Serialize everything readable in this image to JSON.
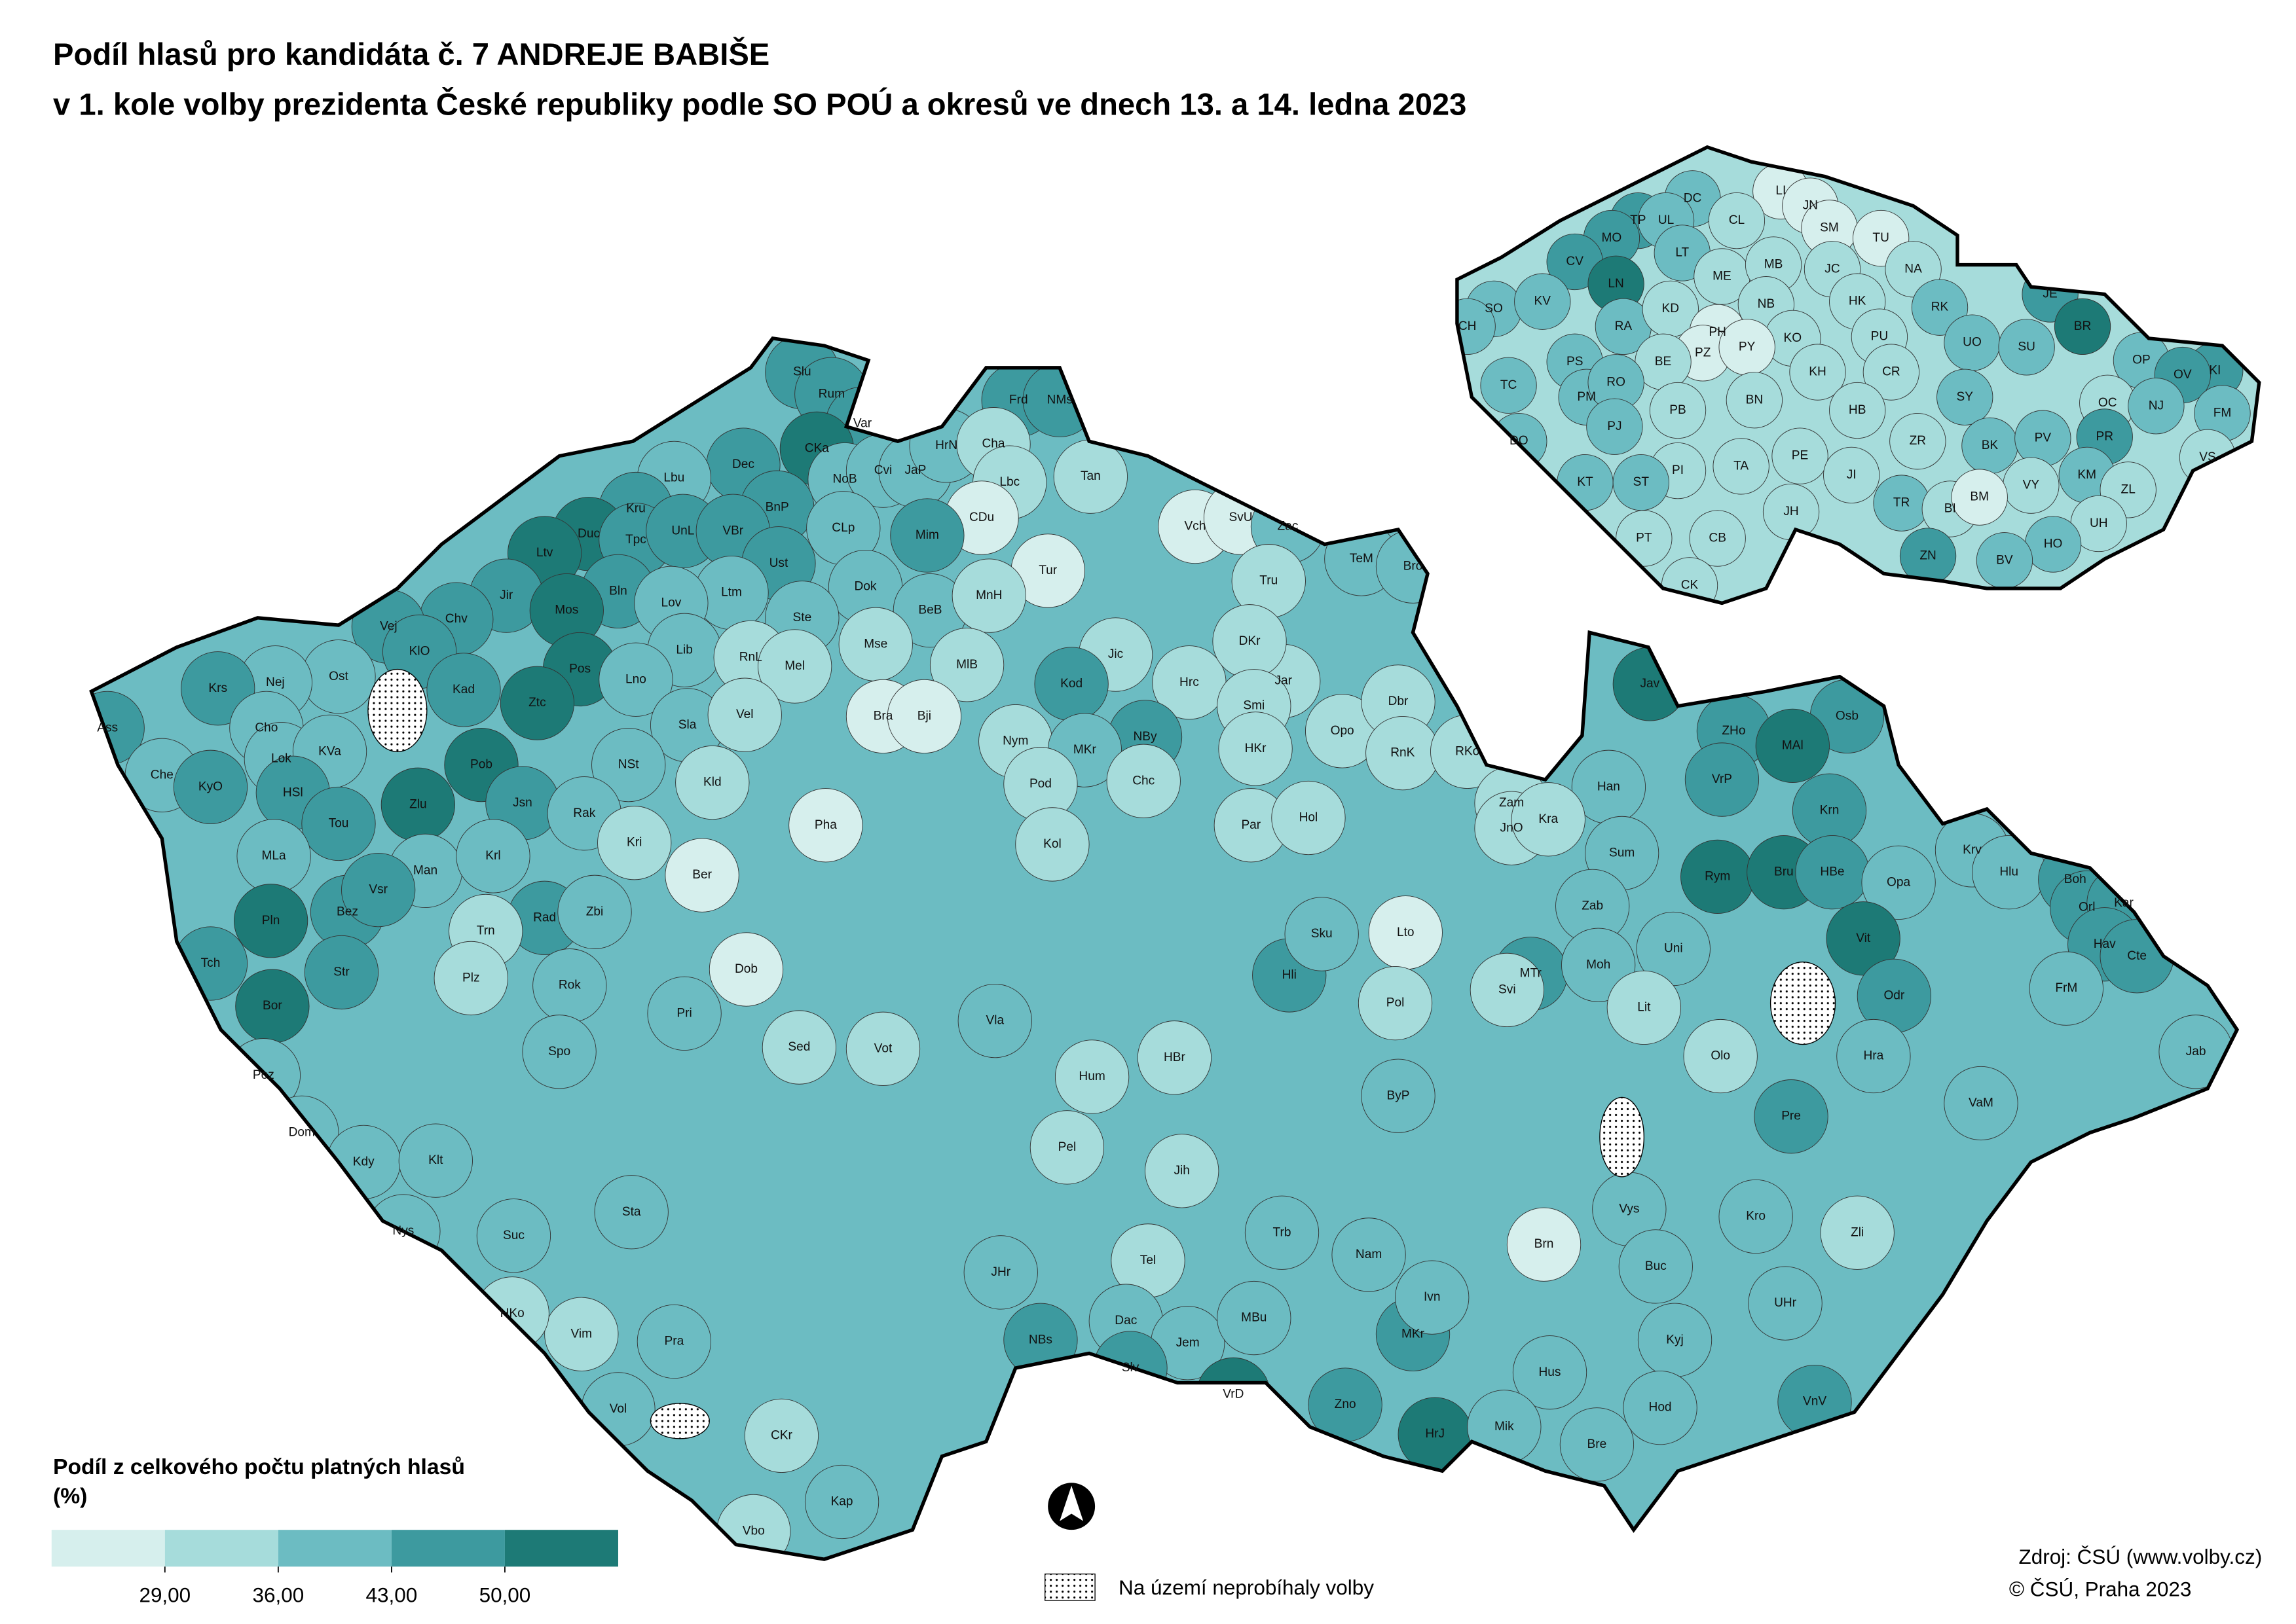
{
  "header": {
    "title_lines": [
      "Podíl hlasů pro kandidáta č. 7 ANDREJE BABIŠE",
      "v 1. kole volby prezidenta České republiky podle SO POÚ a okresů ve dnech 13. a 14. ledna 2023"
    ]
  },
  "legend": {
    "title_lines": [
      "Podíl z celkového počtu platných hlasů",
      "(%)"
    ],
    "colors": [
      "#d6efed",
      "#a6dcdb",
      "#6cbcc2",
      "#3d9a9f",
      "#1d7a76"
    ],
    "breaks": [
      {
        "value": 29,
        "label": "29,00"
      },
      {
        "value": 36,
        "label": "36,00"
      },
      {
        "value": 43,
        "label": "43,00"
      },
      {
        "value": 50,
        "label": "50,00"
      }
    ],
    "no_election": "Na území neprobíhaly volby"
  },
  "source_lines": [
    "Zdroj: ČSÚ (www.volby.cz)",
    "© ČSÚ, Praha 2023"
  ],
  "inset_regions": [
    {
      "label": "DC",
      "color": "#6cbcc2"
    },
    {
      "label": "LI",
      "color": "#d6efed"
    },
    {
      "label": "JN",
      "color": "#d6efed"
    },
    {
      "label": "TP",
      "color": "#3d9a9f"
    },
    {
      "label": "UL",
      "color": "#6cbcc2"
    },
    {
      "label": "CL",
      "color": "#a6dcdb"
    },
    {
      "label": "SM",
      "color": "#d6efed"
    },
    {
      "label": "MO",
      "color": "#3d9a9f"
    },
    {
      "label": "TU",
      "color": "#d6efed"
    },
    {
      "label": "CV",
      "color": "#3d9a9f"
    },
    {
      "label": "LT",
      "color": "#6cbcc2"
    },
    {
      "label": "LN",
      "color": "#1d7a76"
    },
    {
      "label": "ME",
      "color": "#a6dcdb"
    },
    {
      "label": "MB",
      "color": "#a6dcdb"
    },
    {
      "label": "JC",
      "color": "#a6dcdb"
    },
    {
      "label": "NA",
      "color": "#a6dcdb"
    },
    {
      "label": "SO",
      "color": "#6cbcc2"
    },
    {
      "label": "KV",
      "color": "#6cbcc2"
    },
    {
      "label": "RA",
      "color": "#6cbcc2"
    },
    {
      "label": "KD",
      "color": "#a6dcdb"
    },
    {
      "label": "NB",
      "color": "#a6dcdb"
    },
    {
      "label": "HK",
      "color": "#a6dcdb"
    },
    {
      "label": "RK",
      "color": "#6cbcc2"
    },
    {
      "label": "JE",
      "color": "#3d9a9f"
    },
    {
      "label": "CH",
      "color": "#6cbcc2"
    },
    {
      "label": "PH",
      "color": "#d6efed"
    },
    {
      "label": "BR",
      "color": "#1d7a76"
    },
    {
      "label": "KO",
      "color": "#a6dcdb"
    },
    {
      "label": "PZ",
      "color": "#d6efed"
    },
    {
      "label": "PY",
      "color": "#d6efed"
    },
    {
      "label": "UO",
      "color": "#6cbcc2"
    },
    {
      "label": "SU",
      "color": "#6cbcc2"
    },
    {
      "label": "OP",
      "color": "#6cbcc2"
    },
    {
      "label": "KI",
      "color": "#3d9a9f"
    },
    {
      "label": "TC",
      "color": "#6cbcc2"
    },
    {
      "label": "PS",
      "color": "#6cbcc2"
    },
    {
      "label": "BE",
      "color": "#a6dcdb"
    },
    {
      "label": "KH",
      "color": "#a6dcdb"
    },
    {
      "label": "PU",
      "color": "#a6dcdb"
    },
    {
      "label": "CR",
      "color": "#a6dcdb"
    },
    {
      "label": "OV",
      "color": "#3d9a9f"
    },
    {
      "label": "PM",
      "color": "#6cbcc2"
    },
    {
      "label": "RO",
      "color": "#6cbcc2"
    },
    {
      "label": "BN",
      "color": "#a6dcdb"
    },
    {
      "label": "SY",
      "color": "#6cbcc2"
    },
    {
      "label": "OC",
      "color": "#a6dcdb"
    },
    {
      "label": "NJ",
      "color": "#6cbcc2"
    },
    {
      "label": "FM",
      "color": "#6cbcc2"
    },
    {
      "label": "PJ",
      "color": "#6cbcc2"
    },
    {
      "label": "PB",
      "color": "#a6dcdb"
    },
    {
      "label": "HB",
      "color": "#a6dcdb"
    },
    {
      "label": "PR",
      "color": "#3d9a9f"
    },
    {
      "label": "DO",
      "color": "#6cbcc2"
    },
    {
      "label": "ZR",
      "color": "#a6dcdb"
    },
    {
      "label": "BK",
      "color": "#6cbcc2"
    },
    {
      "label": "PV",
      "color": "#6cbcc2"
    },
    {
      "label": "PE",
      "color": "#a6dcdb"
    },
    {
      "label": "TA",
      "color": "#a6dcdb"
    },
    {
      "label": "PI",
      "color": "#a6dcdb"
    },
    {
      "label": "KM",
      "color": "#6cbcc2"
    },
    {
      "label": "ZL",
      "color": "#a6dcdb"
    },
    {
      "label": "VS",
      "color": "#a6dcdb"
    },
    {
      "label": "KT",
      "color": "#6cbcc2"
    },
    {
      "label": "ST",
      "color": "#6cbcc2"
    },
    {
      "label": "JI",
      "color": "#a6dcdb"
    },
    {
      "label": "VY",
      "color": "#a6dcdb"
    },
    {
      "label": "TR",
      "color": "#6cbcc2"
    },
    {
      "label": "BI",
      "color": "#a6dcdb"
    },
    {
      "label": "BM",
      "color": "#d6efed"
    },
    {
      "label": "JH",
      "color": "#a6dcdb"
    },
    {
      "label": "UH",
      "color": "#a6dcdb"
    },
    {
      "label": "PT",
      "color": "#a6dcdb"
    },
    {
      "label": "CB",
      "color": "#a6dcdb"
    },
    {
      "label": "HO",
      "color": "#6cbcc2"
    },
    {
      "label": "ZN",
      "color": "#3d9a9f"
    },
    {
      "label": "BV",
      "color": "#6cbcc2"
    },
    {
      "label": "CK",
      "color": "#a6dcdb"
    }
  ],
  "main_regions": [
    {
      "label": "Slu",
      "color": "#3d9a9f"
    },
    {
      "label": "Rum",
      "color": "#3d9a9f"
    },
    {
      "label": "Var",
      "color": "#3d9a9f"
    },
    {
      "label": "Frd",
      "color": "#3d9a9f"
    },
    {
      "label": "NMs",
      "color": "#3d9a9f"
    },
    {
      "label": "CKa",
      "color": "#1d7a76"
    },
    {
      "label": "Dec",
      "color": "#3d9a9f"
    },
    {
      "label": "Lbu",
      "color": "#6cbcc2"
    },
    {
      "label": "NoB",
      "color": "#6cbcc2"
    },
    {
      "label": "Cvi",
      "color": "#6cbcc2"
    },
    {
      "label": "JaP",
      "color": "#6cbcc2"
    },
    {
      "label": "HrN",
      "color": "#6cbcc2"
    },
    {
      "label": "Cha",
      "color": "#a6dcdb"
    },
    {
      "label": "Tan",
      "color": "#a6dcdb"
    },
    {
      "label": "Lbc",
      "color": "#a6dcdb"
    },
    {
      "label": "Kru",
      "color": "#3d9a9f"
    },
    {
      "label": "BnP",
      "color": "#3d9a9f"
    },
    {
      "label": "CDu",
      "color": "#d6efed"
    },
    {
      "label": "Duc",
      "color": "#1d7a76"
    },
    {
      "label": "Tpc",
      "color": "#3d9a9f"
    },
    {
      "label": "UnL",
      "color": "#3d9a9f"
    },
    {
      "label": "VBr",
      "color": "#3d9a9f"
    },
    {
      "label": "Ltv",
      "color": "#1d7a76"
    },
    {
      "label": "CLp",
      "color": "#6cbcc2"
    },
    {
      "label": "Mim",
      "color": "#3d9a9f"
    },
    {
      "label": "Tur",
      "color": "#d6efed"
    },
    {
      "label": "Vch",
      "color": "#d6efed"
    },
    {
      "label": "SvU",
      "color": "#d6efed"
    },
    {
      "label": "Jir",
      "color": "#3d9a9f"
    },
    {
      "label": "Bln",
      "color": "#3d9a9f"
    },
    {
      "label": "Ust",
      "color": "#3d9a9f"
    },
    {
      "label": "Mos",
      "color": "#1d7a76"
    },
    {
      "label": "Chv",
      "color": "#3d9a9f"
    },
    {
      "label": "Ltm",
      "color": "#6cbcc2"
    },
    {
      "label": "Lov",
      "color": "#6cbcc2"
    },
    {
      "label": "Dok",
      "color": "#6cbcc2"
    },
    {
      "label": "Zac",
      "color": "#6cbcc2"
    },
    {
      "label": "TeM",
      "color": "#6cbcc2"
    },
    {
      "label": "Bro",
      "color": "#6cbcc2"
    },
    {
      "label": "Vej",
      "color": "#3d9a9f"
    },
    {
      "label": "KlO",
      "color": "#3d9a9f"
    },
    {
      "label": "Ste",
      "color": "#6cbcc2"
    },
    {
      "label": "BeB",
      "color": "#6cbcc2"
    },
    {
      "label": "MnH",
      "color": "#a6dcdb"
    },
    {
      "label": "Tru",
      "color": "#a6dcdb"
    },
    {
      "label": "Lib",
      "color": "#6cbcc2"
    },
    {
      "label": "RnL",
      "color": "#a6dcdb"
    },
    {
      "label": "Mse",
      "color": "#a6dcdb"
    },
    {
      "label": "Jic",
      "color": "#a6dcdb"
    },
    {
      "label": "Ost",
      "color": "#6cbcc2"
    },
    {
      "label": "Nej",
      "color": "#6cbcc2"
    },
    {
      "label": "Krs",
      "color": "#3d9a9f"
    },
    {
      "label": "Kad",
      "color": "#3d9a9f"
    },
    {
      "label": "Pos",
      "color": "#1d7a76"
    },
    {
      "label": "Lno",
      "color": "#6cbcc2"
    },
    {
      "label": "Mel",
      "color": "#a6dcdb"
    },
    {
      "label": "MlB",
      "color": "#a6dcdb"
    },
    {
      "label": "Kod",
      "color": "#3d9a9f"
    },
    {
      "label": "Hrc",
      "color": "#a6dcdb"
    },
    {
      "label": "Jar",
      "color": "#a6dcdb"
    },
    {
      "label": "DKr",
      "color": "#a6dcdb"
    },
    {
      "label": "Ztc",
      "color": "#1d7a76"
    },
    {
      "label": "NBy",
      "color": "#3d9a9f"
    },
    {
      "label": "Ass",
      "color": "#3d9a9f"
    },
    {
      "label": "Cho",
      "color": "#6cbcc2"
    },
    {
      "label": "Sla",
      "color": "#6cbcc2"
    },
    {
      "label": "Vel",
      "color": "#a6dcdb"
    },
    {
      "label": "Bra",
      "color": "#d6efed"
    },
    {
      "label": "Bji",
      "color": "#d6efed"
    },
    {
      "label": "Smi",
      "color": "#a6dcdb"
    },
    {
      "label": "Opo",
      "color": "#a6dcdb"
    },
    {
      "label": "Dbr",
      "color": "#a6dcdb"
    },
    {
      "label": "Jav",
      "color": "#1d7a76"
    },
    {
      "label": "Osb",
      "color": "#3d9a9f"
    },
    {
      "label": "ZHo",
      "color": "#3d9a9f"
    },
    {
      "label": "MAl",
      "color": "#1d7a76"
    },
    {
      "label": "Pob",
      "color": "#1d7a76"
    },
    {
      "label": "Lok",
      "color": "#6cbcc2"
    },
    {
      "label": "KVa",
      "color": "#6cbcc2"
    },
    {
      "label": "NSt",
      "color": "#6cbcc2"
    },
    {
      "label": "Nym",
      "color": "#a6dcdb"
    },
    {
      "label": "MKr",
      "color": "#6cbcc2"
    },
    {
      "label": "Pod",
      "color": "#a6dcdb"
    },
    {
      "label": "Chc",
      "color": "#a6dcdb"
    },
    {
      "label": "HKr",
      "color": "#a6dcdb"
    },
    {
      "label": "RnK",
      "color": "#a6dcdb"
    },
    {
      "label": "RKo",
      "color": "#a6dcdb"
    },
    {
      "label": "Che",
      "color": "#6cbcc2"
    },
    {
      "label": "KyO",
      "color": "#3d9a9f"
    },
    {
      "label": "HSl",
      "color": "#3d9a9f"
    },
    {
      "label": "Tou",
      "color": "#3d9a9f"
    },
    {
      "label": "Zlu",
      "color": "#1d7a76"
    },
    {
      "label": "Jsn",
      "color": "#3d9a9f"
    },
    {
      "label": "Pha",
      "color": "#d6efed"
    },
    {
      "label": "Rak",
      "color": "#6cbcc2"
    },
    {
      "label": "Kld",
      "color": "#a6dcdb"
    },
    {
      "label": "Han",
      "color": "#6cbcc2"
    },
    {
      "label": "VrP",
      "color": "#3d9a9f"
    },
    {
      "label": "Krn",
      "color": "#3d9a9f"
    },
    {
      "label": "Ber",
      "color": "#d6efed"
    },
    {
      "label": "Kri",
      "color": "#a6dcdb"
    },
    {
      "label": "Kol",
      "color": "#a6dcdb"
    },
    {
      "label": "Par",
      "color": "#a6dcdb"
    },
    {
      "label": "Hol",
      "color": "#a6dcdb"
    },
    {
      "label": "Zam",
      "color": "#a6dcdb"
    },
    {
      "label": "JnO",
      "color": "#a6dcdb"
    },
    {
      "label": "Kra",
      "color": "#a6dcdb"
    },
    {
      "label": "MLa",
      "color": "#6cbcc2"
    },
    {
      "label": "Man",
      "color": "#6cbcc2"
    },
    {
      "label": "Krl",
      "color": "#6cbcc2"
    },
    {
      "label": "Rym",
      "color": "#1d7a76"
    },
    {
      "label": "Bru",
      "color": "#1d7a76"
    },
    {
      "label": "HBe",
      "color": "#3d9a9f"
    },
    {
      "label": "Sum",
      "color": "#6cbcc2"
    },
    {
      "label": "Opa",
      "color": "#6cbcc2"
    },
    {
      "label": "Krv",
      "color": "#6cbcc2"
    },
    {
      "label": "Hlu",
      "color": "#6cbcc2"
    },
    {
      "label": "Boh",
      "color": "#3d9a9f"
    },
    {
      "label": "Pln",
      "color": "#1d7a76"
    },
    {
      "label": "Bez",
      "color": "#3d9a9f"
    },
    {
      "label": "Vsr",
      "color": "#3d9a9f"
    },
    {
      "label": "Rad",
      "color": "#3d9a9f"
    },
    {
      "label": "Zbi",
      "color": "#6cbcc2"
    },
    {
      "label": "Trn",
      "color": "#a6dcdb"
    },
    {
      "label": "Lto",
      "color": "#d6efed"
    },
    {
      "label": "Zab",
      "color": "#6cbcc2"
    },
    {
      "label": "Vit",
      "color": "#1d7a76"
    },
    {
      "label": "Orl",
      "color": "#3d9a9f"
    },
    {
      "label": "Kar",
      "color": "#3d9a9f"
    },
    {
      "label": "Tch",
      "color": "#3d9a9f"
    },
    {
      "label": "Str",
      "color": "#3d9a9f"
    },
    {
      "label": "MTr",
      "color": "#3d9a9f"
    },
    {
      "label": "Hav",
      "color": "#3d9a9f"
    },
    {
      "label": "Cte",
      "color": "#3d9a9f"
    },
    {
      "label": "Bor",
      "color": "#1d7a76"
    },
    {
      "label": "Plz",
      "color": "#a6dcdb"
    },
    {
      "label": "Rok",
      "color": "#6cbcc2"
    },
    {
      "label": "Dob",
      "color": "#d6efed"
    },
    {
      "label": "Hli",
      "color": "#3d9a9f"
    },
    {
      "label": "Sku",
      "color": "#6cbcc2"
    },
    {
      "label": "Moh",
      "color": "#6cbcc2"
    },
    {
      "label": "Odr",
      "color": "#3d9a9f"
    },
    {
      "label": "FrM",
      "color": "#6cbcc2"
    },
    {
      "label": "Uni",
      "color": "#6cbcc2"
    },
    {
      "label": "Pri",
      "color": "#6cbcc2"
    },
    {
      "label": "Pol",
      "color": "#a6dcdb"
    },
    {
      "label": "Svi",
      "color": "#a6dcdb"
    },
    {
      "label": "Lit",
      "color": "#a6dcdb"
    },
    {
      "label": "Poz",
      "color": "#6cbcc2"
    },
    {
      "label": "Spo",
      "color": "#6cbcc2"
    },
    {
      "label": "Sed",
      "color": "#a6dcdb"
    },
    {
      "label": "Vot",
      "color": "#a6dcdb"
    },
    {
      "label": "Vla",
      "color": "#6cbcc2"
    },
    {
      "label": "Hum",
      "color": "#a6dcdb"
    },
    {
      "label": "HBr",
      "color": "#a6dcdb"
    },
    {
      "label": "ByP",
      "color": "#6cbcc2"
    },
    {
      "label": "Olo",
      "color": "#a6dcdb"
    },
    {
      "label": "Hra",
      "color": "#6cbcc2"
    },
    {
      "label": "Jab",
      "color": "#6cbcc2"
    },
    {
      "label": "Dom",
      "color": "#6cbcc2"
    },
    {
      "label": "Pre",
      "color": "#3d9a9f"
    },
    {
      "label": "VaM",
      "color": "#6cbcc2"
    },
    {
      "label": "Kdy",
      "color": "#6cbcc2"
    },
    {
      "label": "Klt",
      "color": "#6cbcc2"
    },
    {
      "label": "Pel",
      "color": "#a6dcdb"
    },
    {
      "label": "Jih",
      "color": "#a6dcdb"
    },
    {
      "label": "Brn",
      "color": "#d6efed"
    },
    {
      "label": "Vys",
      "color": "#6cbcc2"
    },
    {
      "label": "Zli",
      "color": "#a6dcdb"
    },
    {
      "label": "Nys",
      "color": "#6cbcc2"
    },
    {
      "label": "Sta",
      "color": "#6cbcc2"
    },
    {
      "label": "Trb",
      "color": "#6cbcc2"
    },
    {
      "label": "Nam",
      "color": "#6cbcc2"
    },
    {
      "label": "Kro",
      "color": "#6cbcc2"
    },
    {
      "label": "Suc",
      "color": "#6cbcc2"
    },
    {
      "label": "JHr",
      "color": "#6cbcc2"
    },
    {
      "label": "Tel",
      "color": "#a6dcdb"
    },
    {
      "label": "Buc",
      "color": "#6cbcc2"
    },
    {
      "label": "UHr",
      "color": "#6cbcc2"
    },
    {
      "label": "Vim",
      "color": "#a6dcdb"
    },
    {
      "label": "NBs",
      "color": "#3d9a9f"
    },
    {
      "label": "Dac",
      "color": "#6cbcc2"
    },
    {
      "label": "Jem",
      "color": "#6cbcc2"
    },
    {
      "label": "MBu",
      "color": "#6cbcc2"
    },
    {
      "label": "Zno",
      "color": "#3d9a9f"
    },
    {
      "label": "MKr",
      "color": "#3d9a9f"
    },
    {
      "label": "Hus",
      "color": "#6cbcc2"
    },
    {
      "label": "Kyj",
      "color": "#6cbcc2"
    },
    {
      "label": "VrD",
      "color": "#1d7a76"
    },
    {
      "label": "HrJ",
      "color": "#1d7a76"
    },
    {
      "label": "Vol",
      "color": "#6cbcc2"
    },
    {
      "label": "CKr",
      "color": "#a6dcdb"
    },
    {
      "label": "Kap",
      "color": "#6cbcc2"
    },
    {
      "label": "Vbo",
      "color": "#a6dcdb"
    },
    {
      "label": "Mik",
      "color": "#6cbcc2"
    },
    {
      "label": "Bre",
      "color": "#6cbcc2"
    },
    {
      "label": "Hod",
      "color": "#6cbcc2"
    },
    {
      "label": "VnV",
      "color": "#3d9a9f"
    },
    {
      "label": "Slv",
      "color": "#3d9a9f"
    },
    {
      "label": "Ivn",
      "color": "#6cbcc2"
    },
    {
      "label": "HKo",
      "color": "#a6dcdb"
    },
    {
      "label": "Pra",
      "color": "#6cbcc2"
    }
  ]
}
